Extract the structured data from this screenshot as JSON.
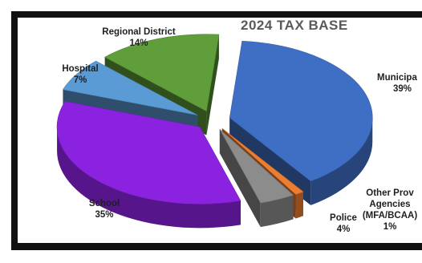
{
  "chart_data": {
    "type": "pie",
    "title": "2024  TAX BASE",
    "slices": [
      {
        "name": "Municipal",
        "label_text": "Municipa",
        "value": 39,
        "value_label": "39%",
        "color": "#3f6fc4"
      },
      {
        "name": "Other Prov Agencies (MFA/BCAA)",
        "value": 1,
        "value_label": "1%",
        "color": "#ed7d31"
      },
      {
        "name": "Police",
        "value": 4,
        "value_label": "4%",
        "color": "#8c8c8c"
      },
      {
        "name": "School",
        "value": 35,
        "value_label": "35%",
        "color": "#8b22e0"
      },
      {
        "name": "Hospital",
        "value": 7,
        "value_label": "7%",
        "color": "#5b9bd5"
      },
      {
        "name": "Regional District",
        "value": 14,
        "value_label": "14%",
        "color": "#5f9e3a"
      }
    ],
    "legend": "none",
    "style": "3d-exploded"
  },
  "labels": {
    "regional_name": "Regional District",
    "regional_pct": "14%",
    "hospital_name": "Hospital",
    "hospital_pct": "7%",
    "municipal_name": "Municipa",
    "municipal_pct": "39%",
    "school_name": "School",
    "school_pct": "35%",
    "other_line1": "Other Prov",
    "other_line2": "Agencies",
    "other_line3": "(MFA/BCAA)",
    "other_pct": "1%",
    "police_name": "Police",
    "police_pct": "4%"
  }
}
